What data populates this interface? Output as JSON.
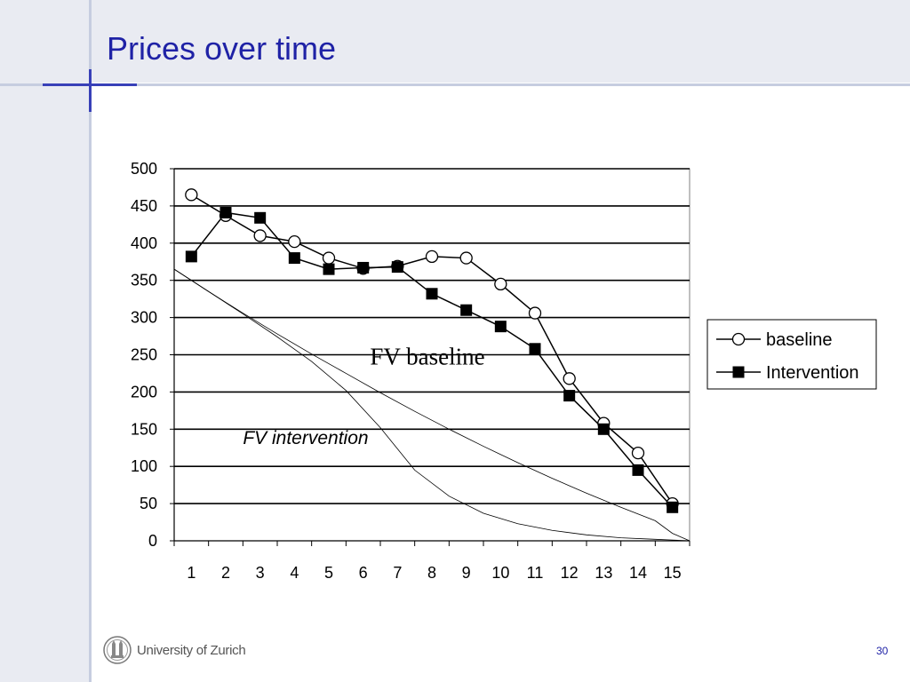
{
  "slide": {
    "title": "Prices over time",
    "page_number": "30",
    "institution": "University of Zurich"
  },
  "chart_data": {
    "type": "line",
    "xlabel": "",
    "ylabel": "",
    "categories": [
      "1",
      "2",
      "3",
      "4",
      "5",
      "6",
      "7",
      "8",
      "9",
      "10",
      "11",
      "12",
      "13",
      "14",
      "15"
    ],
    "ylim": [
      0,
      500
    ],
    "yticks": [
      "0",
      "50",
      "100",
      "150",
      "200",
      "250",
      "300",
      "350",
      "400",
      "450",
      "500"
    ],
    "grid": true,
    "legend_position": "right",
    "series": [
      {
        "name": "baseline",
        "marker": "open-circle",
        "values": [
          465,
          437,
          410,
          402,
          380,
          366,
          369,
          382,
          380,
          345,
          306,
          218,
          158,
          118,
          50
        ]
      },
      {
        "name": "Intervention",
        "marker": "filled-square",
        "values": [
          382,
          441,
          434,
          380,
          365,
          367,
          368,
          332,
          310,
          288,
          258,
          195,
          150,
          95,
          45
        ]
      }
    ],
    "fundamental_value_curves": [
      {
        "label": "FV baseline",
        "values": [
          365,
          335,
          306,
          278,
          251,
          225,
          199,
          174,
          150,
          127,
          105,
          84,
          64,
          45,
          27,
          10,
          0
        ]
      },
      {
        "label": "FV intervention",
        "values": [
          365,
          335,
          305,
          274,
          241,
          202,
          152,
          95,
          60,
          37,
          23,
          14,
          8,
          4,
          2,
          1,
          0
        ]
      }
    ],
    "fv_x": [
      0.5,
      1.5,
      2.5,
      3.5,
      4.5,
      5.5,
      6.5,
      7.5,
      8.5,
      9.5,
      10.5,
      11.5,
      12.5,
      13.5,
      14.5,
      15.0,
      15.5
    ]
  },
  "colors": {
    "title": "#1f22a6",
    "background_band": "#e9ebf2",
    "accent_line": "#3840b8"
  }
}
